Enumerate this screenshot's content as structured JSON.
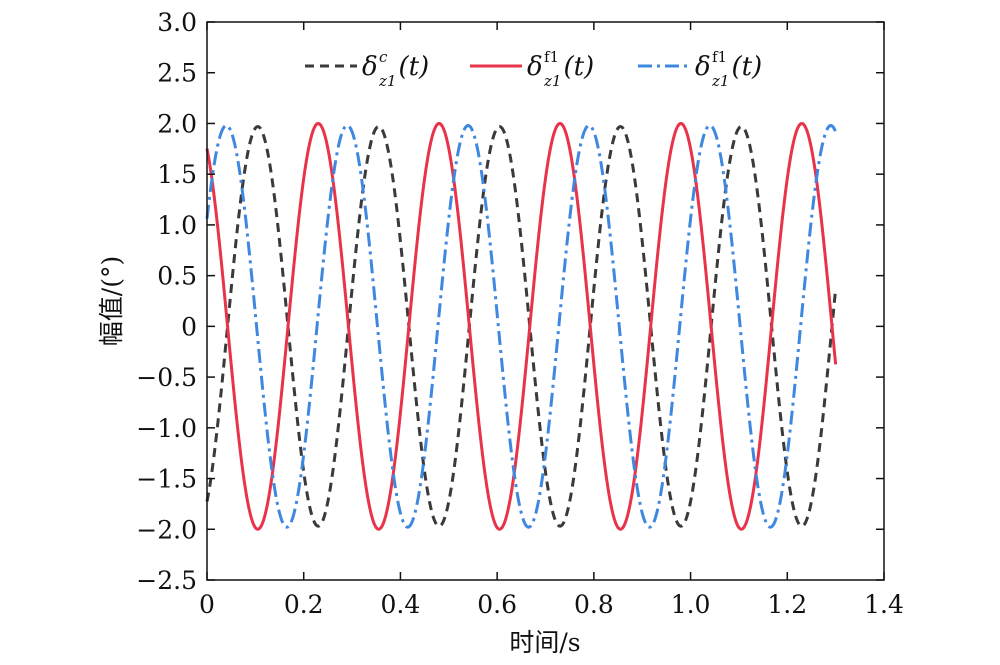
{
  "chart_data": {
    "type": "line",
    "title": "",
    "xlabel": "时间/s",
    "ylabel": "幅值/(°)",
    "xlim": [
      0,
      1.4
    ],
    "ylim": [
      -2.5,
      3.0
    ],
    "xticks": [
      0,
      0.2,
      0.4,
      0.6,
      0.8,
      1.0,
      1.2,
      1.4
    ],
    "xtick_labels": [
      "0",
      "0.2",
      "0.4",
      "0.6",
      "0.8",
      "1.0",
      "1.2",
      "1.4"
    ],
    "yticks": [
      -2.5,
      -2.0,
      -1.5,
      -1.0,
      -0.5,
      0,
      0.5,
      1.0,
      1.5,
      2.0,
      2.5,
      3.0
    ],
    "ytick_labels": [
      "−2.5",
      "−2.0",
      "−1.5",
      "−1.0",
      "−0.5",
      "0",
      "0.5",
      "1.0",
      "1.5",
      "2.0",
      "2.5",
      "3.0"
    ],
    "grid": false,
    "legend_position": "top",
    "frequency_hz": 4,
    "x_end": 1.3,
    "series": [
      {
        "name": "δz1c(t)",
        "legend": {
          "base": "δ",
          "sub": "z1",
          "sup": "c",
          "arg": "(t)"
        },
        "style": "dashed",
        "color": "#3a3a3a",
        "amplitude": 1.97,
        "peak_times": [
          0.105,
          0.355,
          0.605,
          0.855,
          1.105
        ]
      },
      {
        "name": "δz1f1(t)",
        "legend": {
          "base": "δ",
          "sub": "z1",
          "sup": "f1",
          "arg": "(t)"
        },
        "style": "solid",
        "color": "#e8334a",
        "amplitude": 2.0,
        "peak_times": [
          0.23,
          0.48,
          0.73,
          0.98,
          1.23
        ]
      },
      {
        "name": "δz1f1(t)",
        "legend": {
          "base": "δ",
          "sub": "z1",
          "sup": "f1",
          "arg": "(t)"
        },
        "style": "dashdot",
        "color": "#3f88e0",
        "amplitude": 1.98,
        "peak_times": [
          0.04,
          0.29,
          0.54,
          0.79,
          1.04,
          1.29
        ]
      }
    ]
  }
}
